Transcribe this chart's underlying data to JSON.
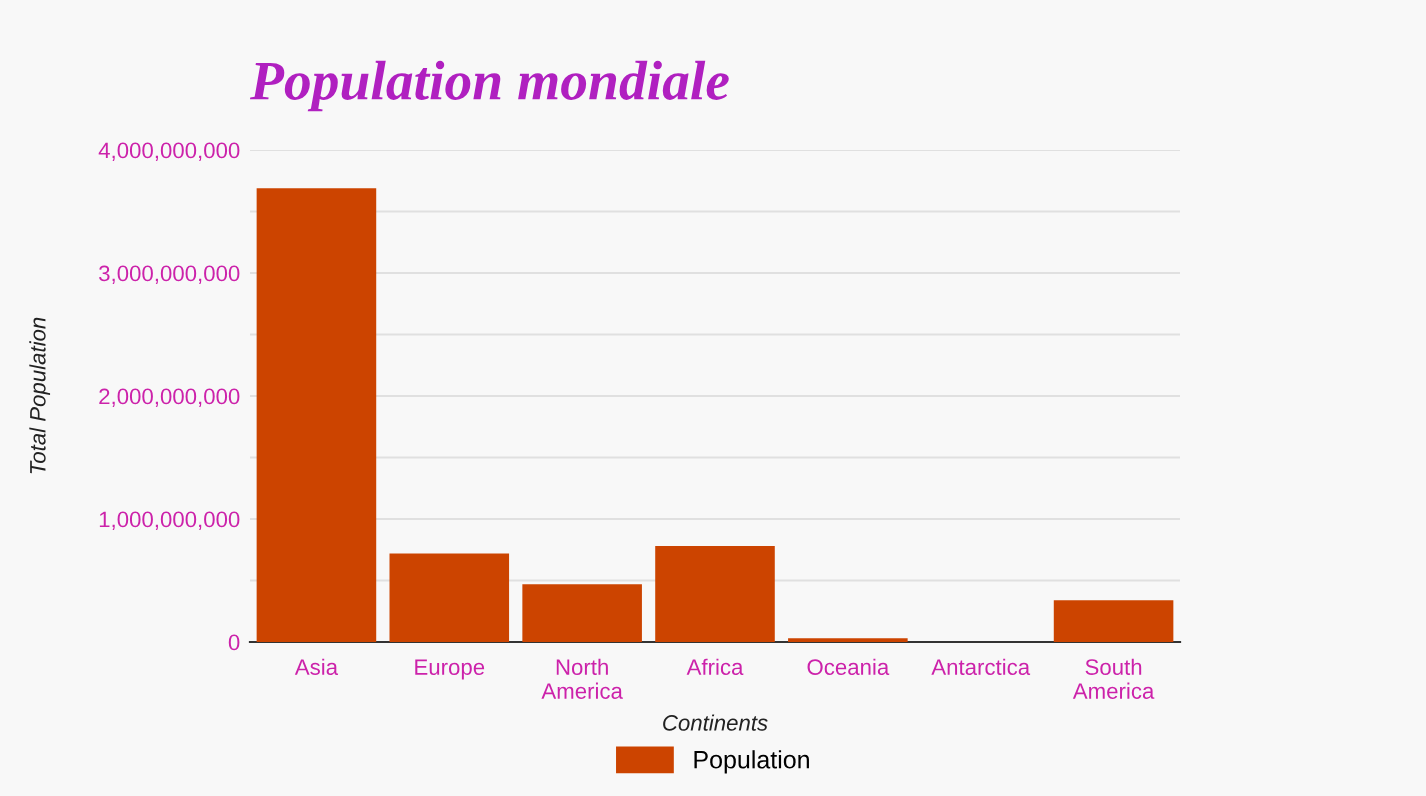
{
  "chart_data": {
    "type": "bar",
    "title": "Population mondiale",
    "xlabel": "Continents",
    "ylabel": "Total Population",
    "categories": [
      "Asia",
      "Europe",
      "North America",
      "Africa",
      "Oceania",
      "Antarctica",
      "South America"
    ],
    "series": [
      {
        "name": "Population",
        "color": "#cc4400",
        "values": [
          3690000000,
          720000000,
          470000000,
          780000000,
          30000000,
          null,
          340000000
        ]
      }
    ],
    "ylim": [
      0,
      4000000000
    ],
    "yticks": [
      0,
      {
        "value": 500000000,
        "label": null
      },
      {
        "value": 1000000000,
        "label": "1,000,000,000"
      },
      {
        "value": 1500000000,
        "label": null
      },
      {
        "value": 2000000000,
        "label": "2,000,000,000"
      },
      {
        "value": 2500000000,
        "label": null
      },
      {
        "value": 3000000000,
        "label": "3,000,000,000"
      },
      {
        "value": 3500000000,
        "label": null
      },
      {
        "value": 4000000000,
        "label": "4,000,000,000"
      }
    ],
    "grid": "y",
    "legend": "bottom"
  }
}
